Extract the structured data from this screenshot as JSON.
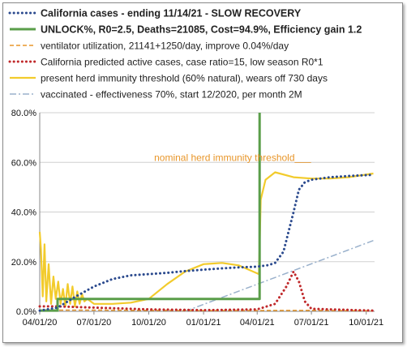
{
  "chart_data": {
    "type": "line",
    "xlim": [
      "2020-04-01",
      "2021-10-15"
    ],
    "ylim": [
      0,
      80
    ],
    "y_ticks": [
      0,
      20,
      40,
      60,
      80
    ],
    "y_tick_labels": [
      "0.0%",
      "20.0%",
      "40.0%",
      "60.0%",
      "80.0%"
    ],
    "x_ticks": [
      "2020-04-01",
      "2020-07-01",
      "2020-10-01",
      "2021-01-01",
      "2021-04-01",
      "2021-07-01",
      "2021-10-01"
    ],
    "x_tick_labels": [
      "04/01/20",
      "07/01/20",
      "10/01/20",
      "01/01/21",
      "04/01/21",
      "07/01/21",
      "10/01/21"
    ],
    "grid": "horizontal",
    "legend_placement": "top-left",
    "annotation": {
      "text": "nominal herd immunity threshold___",
      "x": "2020-10-10",
      "y": 60.5,
      "color": "#e8962a"
    },
    "series": [
      {
        "name": "California cases - ending 11/14/21 - SLOW RECOVERY",
        "style": "dotted",
        "color": "#2b4a8e",
        "bold_label": true,
        "points": [
          [
            "2020-04-01",
            0.3
          ],
          [
            "2020-05-01",
            1.5
          ],
          [
            "2020-06-01",
            6
          ],
          [
            "2020-07-01",
            10
          ],
          [
            "2020-08-01",
            13
          ],
          [
            "2020-09-01",
            14.5
          ],
          [
            "2020-10-01",
            15
          ],
          [
            "2020-11-01",
            15.5
          ],
          [
            "2020-12-01",
            16.2
          ],
          [
            "2021-01-01",
            16.8
          ],
          [
            "2021-02-01",
            17.3
          ],
          [
            "2021-03-01",
            17.7
          ],
          [
            "2021-04-01",
            18
          ],
          [
            "2021-04-20",
            18.6
          ],
          [
            "2021-05-01",
            19.5
          ],
          [
            "2021-05-15",
            24
          ],
          [
            "2021-06-01",
            40
          ],
          [
            "2021-06-10",
            49
          ],
          [
            "2021-06-20",
            52
          ],
          [
            "2021-07-01",
            53
          ],
          [
            "2021-08-01",
            54
          ],
          [
            "2021-09-01",
            54.5
          ],
          [
            "2021-10-13",
            55
          ]
        ]
      },
      {
        "name": "UNLOCK%, R0=2.5,  Deaths=21085, Cost=94.9%, Efficiency gain 1.2",
        "style": "solid-thick",
        "color": "#5a9e4a",
        "bold_label": true,
        "points": [
          [
            "2020-04-01",
            0.3
          ],
          [
            "2020-05-01",
            0.3
          ],
          [
            "2020-05-01",
            5
          ],
          [
            "2021-04-05",
            5
          ],
          [
            "2021-04-05",
            80
          ]
        ]
      },
      {
        "name": "ventilator utilization, 21141+1250/day, improve 0.04%/day",
        "style": "dashed",
        "color": "#e8962a",
        "points": [
          [
            "2020-04-01",
            0.5
          ],
          [
            "2020-07-01",
            0.5
          ],
          [
            "2021-01-01",
            0.3
          ],
          [
            "2021-07-01",
            0.4
          ],
          [
            "2021-10-13",
            0.2
          ]
        ]
      },
      {
        "name": "California predicted active cases, case ratio=15, low season R0*1",
        "style": "dotted",
        "color": "#c0282a",
        "points": [
          [
            "2020-04-01",
            2
          ],
          [
            "2020-05-01",
            2
          ],
          [
            "2020-07-01",
            1.5
          ],
          [
            "2020-10-01",
            0.8
          ],
          [
            "2021-01-01",
            0.5
          ],
          [
            "2021-04-01",
            0.8
          ],
          [
            "2021-05-01",
            3
          ],
          [
            "2021-05-20",
            10
          ],
          [
            "2021-06-01",
            16
          ],
          [
            "2021-06-10",
            12
          ],
          [
            "2021-06-20",
            4
          ],
          [
            "2021-07-01",
            1
          ],
          [
            "2021-10-13",
            0.3
          ]
        ]
      },
      {
        "name": "present herd immunity threshold (60% natural), wears off 730 days",
        "style": "solid",
        "color": "#f2cb2c",
        "points": [
          [
            "2020-04-01",
            32
          ],
          [
            "2020-04-03",
            25
          ],
          [
            "2020-04-06",
            6
          ],
          [
            "2020-04-09",
            27
          ],
          [
            "2020-04-12",
            4
          ],
          [
            "2020-04-16",
            19
          ],
          [
            "2020-04-20",
            3
          ],
          [
            "2020-04-24",
            14
          ],
          [
            "2020-04-28",
            5
          ],
          [
            "2020-05-02",
            12
          ],
          [
            "2020-05-06",
            3
          ],
          [
            "2020-05-10",
            9
          ],
          [
            "2020-05-14",
            2
          ],
          [
            "2020-05-18",
            11
          ],
          [
            "2020-05-22",
            3
          ],
          [
            "2020-05-26",
            10
          ],
          [
            "2020-05-30",
            2
          ],
          [
            "2020-06-03",
            8
          ],
          [
            "2020-06-07",
            3
          ],
          [
            "2020-06-11",
            7
          ],
          [
            "2020-06-15",
            4
          ],
          [
            "2020-06-20",
            5
          ],
          [
            "2020-07-01",
            3
          ],
          [
            "2020-08-01",
            3
          ],
          [
            "2020-09-01",
            3.5
          ],
          [
            "2020-10-01",
            5
          ],
          [
            "2020-11-01",
            11
          ],
          [
            "2020-12-01",
            16
          ],
          [
            "2021-01-01",
            19
          ],
          [
            "2021-02-01",
            19.5
          ],
          [
            "2021-03-01",
            18.5
          ],
          [
            "2021-04-04",
            15
          ],
          [
            "2021-04-07",
            45
          ],
          [
            "2021-04-15",
            53
          ],
          [
            "2021-05-01",
            56
          ],
          [
            "2021-06-01",
            54
          ],
          [
            "2021-07-01",
            53.5
          ],
          [
            "2021-08-01",
            53.5
          ],
          [
            "2021-09-01",
            54
          ],
          [
            "2021-10-13",
            55.5
          ]
        ]
      },
      {
        "name": "vaccinated - effectiveness 70%, start 12/2020, per month 2M",
        "style": "dash-dot",
        "color": "#9ab1cc",
        "points": [
          [
            "2020-12-01",
            0
          ],
          [
            "2021-10-13",
            28.5
          ]
        ]
      }
    ]
  }
}
